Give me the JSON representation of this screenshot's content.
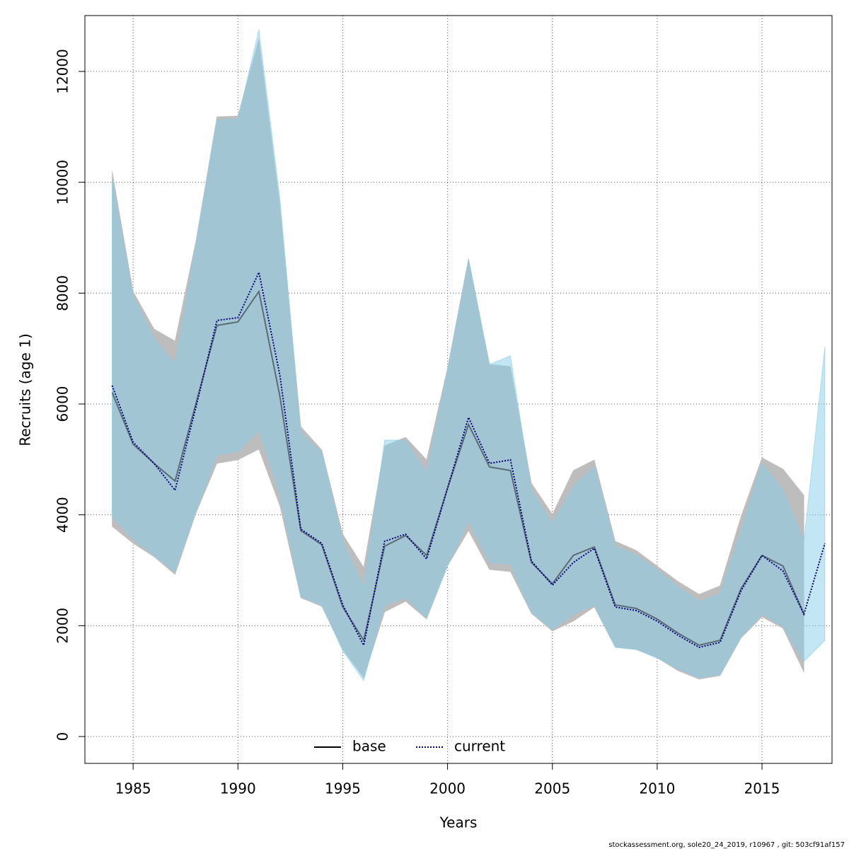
{
  "chart_data": {
    "type": "line_band",
    "x_label": "Years",
    "y_label": "Recruits (age 1)",
    "footnote": "stockassessment.org, sole20_24_2019, r10967 , git: 503cf91af157",
    "x": [
      1984,
      1985,
      1986,
      1987,
      1988,
      1989,
      1990,
      1991,
      1992,
      1993,
      1994,
      1995,
      1996,
      1997,
      1998,
      1999,
      2000,
      2001,
      2002,
      2003,
      2004,
      2005,
      2006,
      2007,
      2008,
      2009,
      2010,
      2011,
      2012,
      2013,
      2014,
      2015,
      2016,
      2017,
      2018
    ],
    "series": [
      {
        "name": "base",
        "color": "#000000",
        "band_color": "#bdbdbd",
        "dashed": false,
        "values": [
          6205,
          5273,
          4928,
          4609,
          6013,
          7417,
          7481,
          8030,
          6140,
          3715,
          3460,
          2336,
          1736,
          3434,
          3626,
          3268,
          4481,
          5630,
          4864,
          4800,
          3140,
          2757,
          3268,
          3421,
          2375,
          2311,
          2119,
          1864,
          1647,
          1736,
          2668,
          3268,
          3077,
          2209,
          null
        ],
        "upper": [
          10200,
          8030,
          7353,
          7136,
          8949,
          11183,
          11196,
          12588,
          9588,
          5592,
          5170,
          3651,
          3051,
          5247,
          5400,
          4992,
          6651,
          8630,
          6715,
          6677,
          4570,
          4009,
          4800,
          4992,
          3524,
          3358,
          3077,
          2796,
          2566,
          2719,
          3970,
          5030,
          4826,
          4353,
          null
        ],
        "lower": [
          3792,
          3485,
          3243,
          2923,
          4034,
          4928,
          4992,
          5183,
          4162,
          2502,
          2349,
          1570,
          1060,
          2247,
          2438,
          2119,
          3077,
          3715,
          3013,
          2975,
          2221,
          1902,
          2081,
          2336,
          1609,
          1570,
          1417,
          1187,
          1034,
          1098,
          1775,
          2158,
          1953,
          1162,
          null
        ]
      },
      {
        "name": "current",
        "color": "#000080",
        "band_color": "#87ceeb",
        "dashed": true,
        "values": [
          6332,
          5311,
          4928,
          4443,
          5949,
          7507,
          7558,
          8375,
          6523,
          3741,
          3485,
          2375,
          1647,
          3524,
          3651,
          3204,
          4481,
          5758,
          4928,
          4992,
          3166,
          2732,
          3140,
          3396,
          2336,
          2272,
          2081,
          1826,
          1609,
          1698,
          2630,
          3268,
          2987,
          2209,
          3485
        ],
        "upper": [
          10034,
          7954,
          7187,
          6715,
          8885,
          11120,
          11145,
          12754,
          9715,
          5477,
          5119,
          3524,
          2694,
          5349,
          5349,
          4762,
          6587,
          8592,
          6715,
          6868,
          4443,
          3843,
          4506,
          4864,
          3434,
          3268,
          3013,
          2694,
          2438,
          2566,
          3715,
          4928,
          4443,
          3524,
          7034
        ],
        "lower": [
          3970,
          3562,
          3268,
          2975,
          4073,
          5081,
          5145,
          5528,
          4379,
          2528,
          2375,
          1545,
          1009,
          2375,
          2502,
          2145,
          3077,
          3894,
          3140,
          3115,
          2247,
          1928,
          2209,
          2375,
          1609,
          1570,
          1417,
          1225,
          1060,
          1123,
          1800,
          2209,
          1992,
          1353,
          1736
        ]
      }
    ],
    "xlim": [
      1982.7,
      2018.34
    ],
    "ylim": [
      -485,
      13008
    ],
    "xticks": [
      1985,
      1990,
      1995,
      2000,
      2005,
      2010,
      2015
    ],
    "yticks": [
      0,
      2000,
      4000,
      6000,
      8000,
      10000,
      12000
    ],
    "grid": true,
    "legend": "bottom"
  }
}
